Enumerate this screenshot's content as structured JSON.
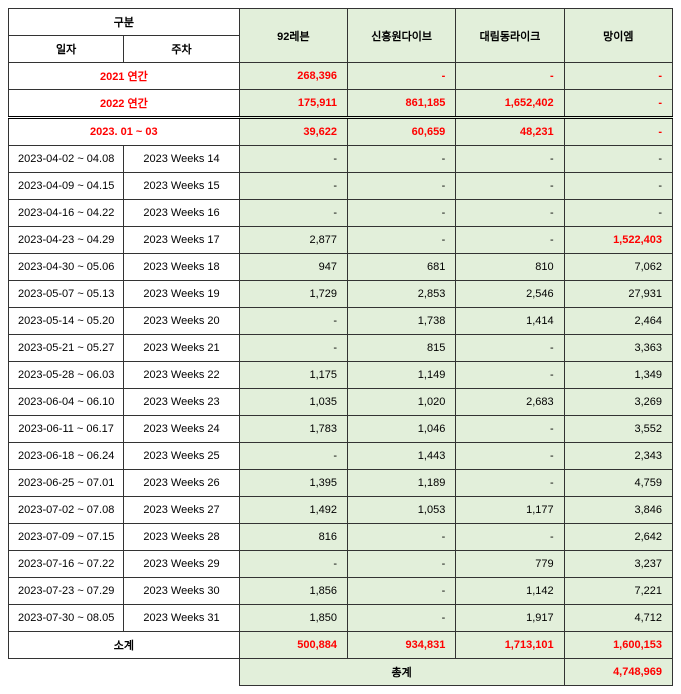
{
  "headers": {
    "category": "구분",
    "date": "일자",
    "week": "주차",
    "col1": "92레븐",
    "col2": "신흥원다이브",
    "col3": "대림동라이크",
    "col4": "망이엠"
  },
  "annual": [
    {
      "label": "2021 연간",
      "v1": "268,396",
      "v2": "-",
      "v3": "-",
      "v4": "-"
    },
    {
      "label": "2022 연간",
      "v1": "175,911",
      "v2": "861,185",
      "v3": "1,652,402",
      "v4": "-"
    }
  ],
  "quarter": {
    "label": "2023. 01 ~ 03",
    "v1": "39,622",
    "v2": "60,659",
    "v3": "48,231",
    "v4": "-"
  },
  "rows": [
    {
      "date": "2023-04-02 ~ 04.08",
      "week": "2023 Weeks 14",
      "v1": "-",
      "v2": "-",
      "v3": "-",
      "v4": "-"
    },
    {
      "date": "2023-04-09 ~ 04.15",
      "week": "2023 Weeks 15",
      "v1": "-",
      "v2": "-",
      "v3": "-",
      "v4": "-"
    },
    {
      "date": "2023-04-16 ~ 04.22",
      "week": "2023 Weeks 16",
      "v1": "-",
      "v2": "-",
      "v3": "-",
      "v4": "-"
    },
    {
      "date": "2023-04-23 ~ 04.29",
      "week": "2023 Weeks 17",
      "v1": "2,877",
      "v2": "-",
      "v3": "-",
      "v4": "1,522,403",
      "v4_red": true
    },
    {
      "date": "2023-04-30 ~ 05.06",
      "week": "2023 Weeks 18",
      "v1": "947",
      "v2": "681",
      "v3": "810",
      "v4": "7,062"
    },
    {
      "date": "2023-05-07 ~ 05.13",
      "week": "2023 Weeks 19",
      "v1": "1,729",
      "v2": "2,853",
      "v3": "2,546",
      "v4": "27,931"
    },
    {
      "date": "2023-05-14 ~ 05.20",
      "week": "2023 Weeks 20",
      "v1": "-",
      "v2": "1,738",
      "v3": "1,414",
      "v4": "2,464"
    },
    {
      "date": "2023-05-21 ~ 05.27",
      "week": "2023 Weeks 21",
      "v1": "-",
      "v2": "815",
      "v3": "-",
      "v4": "3,363"
    },
    {
      "date": "2023-05-28 ~ 06.03",
      "week": "2023 Weeks 22",
      "v1": "1,175",
      "v2": "1,149",
      "v3": "-",
      "v4": "1,349"
    },
    {
      "date": "2023-06-04 ~ 06.10",
      "week": "2023 Weeks 23",
      "v1": "1,035",
      "v2": "1,020",
      "v3": "2,683",
      "v4": "3,269"
    },
    {
      "date": "2023-06-11 ~ 06.17",
      "week": "2023 Weeks 24",
      "v1": "1,783",
      "v2": "1,046",
      "v3": "-",
      "v4": "3,552"
    },
    {
      "date": "2023-06-18 ~ 06.24",
      "week": "2023 Weeks 25",
      "v1": "-",
      "v2": "1,443",
      "v3": "-",
      "v4": "2,343"
    },
    {
      "date": "2023-06-25 ~ 07.01",
      "week": "2023 Weeks 26",
      "v1": "1,395",
      "v2": "1,189",
      "v3": "-",
      "v4": "4,759"
    },
    {
      "date": "2023-07-02 ~ 07.08",
      "week": "2023 Weeks 27",
      "v1": "1,492",
      "v2": "1,053",
      "v3": "1,177",
      "v4": "3,846"
    },
    {
      "date": "2023-07-09 ~ 07.15",
      "week": "2023 Weeks 28",
      "v1": "816",
      "v2": "-",
      "v3": "-",
      "v4": "2,642"
    },
    {
      "date": "2023-07-16 ~ 07.22",
      "week": "2023 Weeks 29",
      "v1": "-",
      "v2": "-",
      "v3": "779",
      "v4": "3,237"
    },
    {
      "date": "2023-07-23 ~ 07.29",
      "week": "2023 Weeks 30",
      "v1": "1,856",
      "v2": "-",
      "v3": "1,142",
      "v4": "7,221"
    },
    {
      "date": "2023-07-30 ~ 08.05",
      "week": "2023 Weeks 31",
      "v1": "1,850",
      "v2": "-",
      "v3": "1,917",
      "v4": "4,712"
    }
  ],
  "subtotal": {
    "label": "소계",
    "v1": "500,884",
    "v2": "934,831",
    "v3": "1,713,101",
    "v4": "1,600,153"
  },
  "grandtotal": {
    "label": "총계",
    "value": "4,748,969"
  }
}
